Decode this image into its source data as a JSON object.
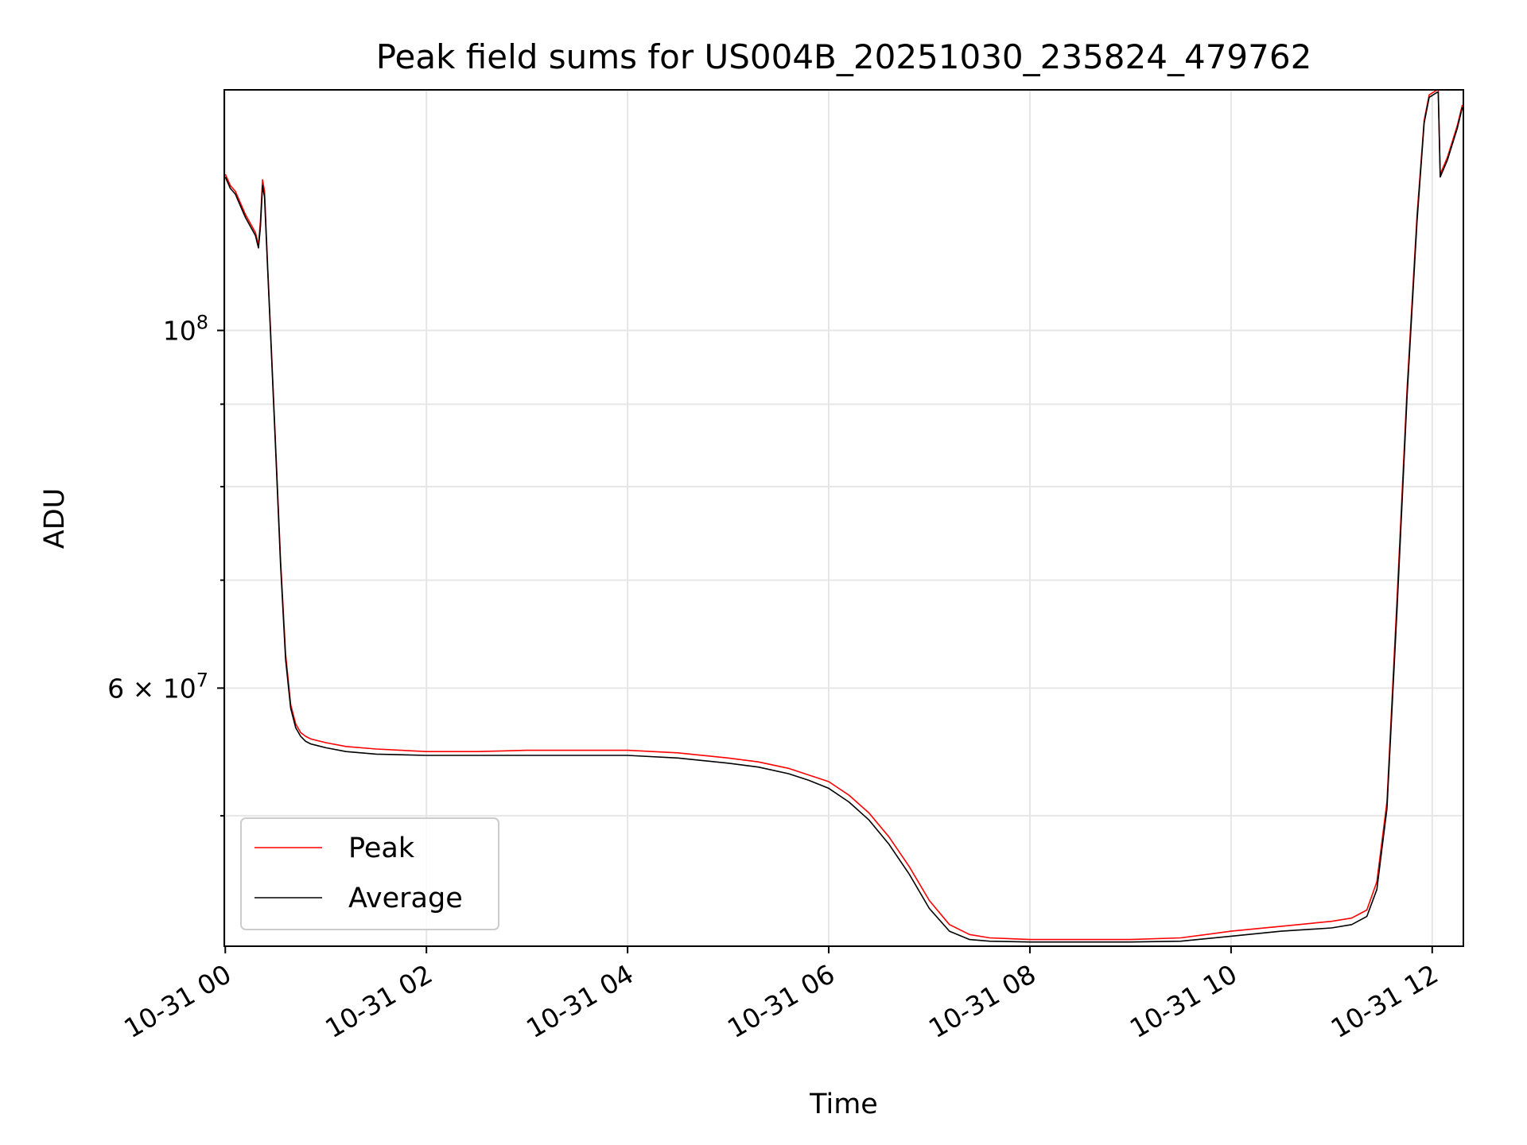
{
  "chart_data": {
    "type": "line",
    "title": "Peak field sums for US004B_20251030_235824_479762",
    "xlabel": "Time",
    "ylabel": "ADU",
    "yscale": "log",
    "ylim": [
      41500000,
      141000000
    ],
    "xlim_hours": [
      -0.01,
      12.31
    ],
    "x_unit": "hours since 10-31 00:00",
    "x_ticks": [
      {
        "value": 0,
        "label": "10-31 00"
      },
      {
        "value": 2,
        "label": "10-31 02"
      },
      {
        "value": 4,
        "label": "10-31 04"
      },
      {
        "value": 6,
        "label": "10-31 06"
      },
      {
        "value": 8,
        "label": "10-31 08"
      },
      {
        "value": 10,
        "label": "10-31 10"
      },
      {
        "value": 12,
        "label": "10-31 12"
      }
    ],
    "y_major_ticks": [
      {
        "value": 60000000,
        "base": "6 × 10",
        "exp": "7"
      },
      {
        "value": 100000000,
        "base": "10",
        "exp": "8"
      }
    ],
    "y_minor_ticks": [
      50000000,
      70000000,
      80000000,
      90000000
    ],
    "grid": true,
    "legend_position": "lower-left",
    "series": [
      {
        "name": "Peak",
        "color": "#ff0000",
        "x": [
          0,
          0.05,
          0.1,
          0.2,
          0.3,
          0.33,
          0.35,
          0.37,
          0.39,
          0.42,
          0.45,
          0.5,
          0.55,
          0.6,
          0.65,
          0.7,
          0.75,
          0.8,
          0.85,
          0.9,
          1.0,
          1.2,
          1.5,
          2,
          2.5,
          3,
          3.5,
          4,
          4.5,
          5,
          5.3,
          5.6,
          5.8,
          6,
          6.2,
          6.4,
          6.6,
          6.8,
          7.0,
          7.2,
          7.4,
          7.6,
          8,
          8.5,
          9,
          9.5,
          10,
          10.5,
          11,
          11.2,
          11.35,
          11.45,
          11.55,
          11.65,
          11.75,
          11.85,
          11.92,
          11.97,
          12.05,
          12.06,
          12.08,
          12.15,
          12.25,
          12.3
        ],
        "values": [
          125000000,
          123000000,
          122000000,
          118000000,
          115000000,
          113000000,
          117000000,
          124000000,
          122000000,
          110000000,
          100000000,
          85000000,
          72000000,
          63000000,
          58600000,
          57000000,
          56300000,
          56000000,
          55800000,
          55700000,
          55500000,
          55200000,
          55000000,
          54800000,
          54800000,
          54900000,
          54900000,
          54900000,
          54700000,
          54300000,
          54000000,
          53500000,
          53000000,
          52500000,
          51500000,
          50200000,
          48500000,
          46500000,
          44300000,
          42800000,
          42200000,
          42000000,
          41900000,
          41900000,
          41900000,
          42000000,
          42400000,
          42700000,
          43000000,
          43200000,
          43700000,
          45500000,
          51000000,
          68000000,
          92000000,
          118000000,
          135000000,
          140000000,
          141000000,
          141000000,
          125000000,
          128000000,
          134000000,
          138000000
        ]
      },
      {
        "name": "Average",
        "color": "#000000",
        "x": [
          0,
          0.05,
          0.1,
          0.2,
          0.3,
          0.33,
          0.35,
          0.37,
          0.39,
          0.42,
          0.45,
          0.5,
          0.55,
          0.6,
          0.65,
          0.7,
          0.75,
          0.8,
          0.85,
          0.9,
          1.0,
          1.2,
          1.5,
          2,
          2.5,
          3,
          3.5,
          4,
          4.5,
          5,
          5.3,
          5.6,
          5.8,
          6,
          6.2,
          6.4,
          6.6,
          6.8,
          7.0,
          7.2,
          7.4,
          7.6,
          8,
          8.5,
          9,
          9.5,
          10,
          10.5,
          11,
          11.2,
          11.35,
          11.45,
          11.55,
          11.65,
          11.75,
          11.85,
          11.92,
          11.97,
          12.05,
          12.06,
          12.08,
          12.15,
          12.25,
          12.3
        ],
        "values": [
          124500000,
          122500000,
          121500000,
          117500000,
          114500000,
          112500000,
          116000000,
          123000000,
          121000000,
          109500000,
          99500000,
          84500000,
          71500000,
          62500000,
          58300000,
          56700000,
          56000000,
          55600000,
          55400000,
          55300000,
          55100000,
          54800000,
          54600000,
          54500000,
          54500000,
          54500000,
          54500000,
          54500000,
          54300000,
          53900000,
          53600000,
          53100000,
          52600000,
          52000000,
          51000000,
          49700000,
          48000000,
          46000000,
          43800000,
          42400000,
          41900000,
          41800000,
          41750000,
          41750000,
          41750000,
          41800000,
          42100000,
          42400000,
          42600000,
          42800000,
          43300000,
          45000000,
          50500000,
          67000000,
          91000000,
          117000000,
          134500000,
          139500000,
          140500000,
          140500000,
          124500000,
          127500000,
          133500000,
          137500000
        ]
      }
    ]
  }
}
